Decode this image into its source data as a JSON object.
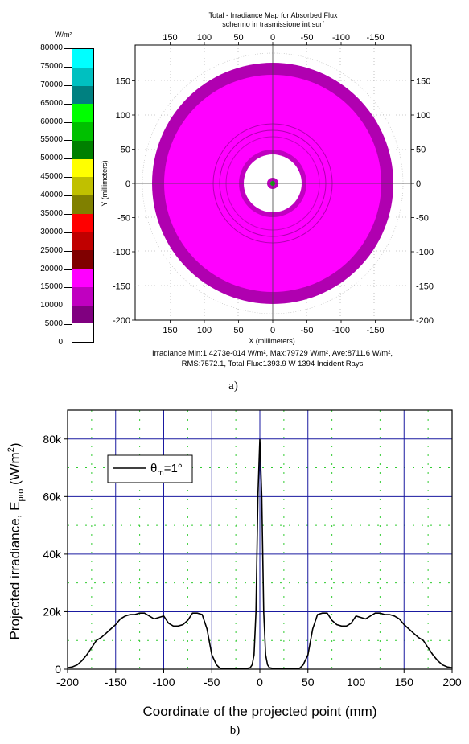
{
  "figure_a": {
    "caption": "a)",
    "title_line1": "Total - Irradiance Map for Absorbed Flux",
    "title_line2": "schermo in trasmissione int surf",
    "colorbar_unit": "W/m²",
    "colorbar_labels": [
      "80000",
      "75000",
      "70000",
      "65000",
      "60000",
      "55000",
      "50000",
      "45000",
      "40000",
      "35000",
      "30000",
      "25000",
      "20000",
      "15000",
      "10000",
      "5000",
      "0"
    ],
    "colorbar_colors": [
      "#00ffff",
      "#00c0c0",
      "#008080",
      "#00ff00",
      "#00c000",
      "#008000",
      "#ffff00",
      "#c0c000",
      "#808000",
      "#ff0000",
      "#c00000",
      "#800000",
      "#ff00ff",
      "#c000c0",
      "#800080",
      "#ffffff"
    ],
    "ring_colors": {
      "outer": "#b000b0",
      "inner": "#ff00ff",
      "center": "#c000c0",
      "center_dot": "#00c000"
    },
    "x_top_ticks": [
      "150",
      "100",
      "50",
      "0",
      "-50",
      "-100",
      "-150"
    ],
    "x_bottom_ticks": [
      "150",
      "100",
      "50",
      "0",
      "-50",
      "-100",
      "-150"
    ],
    "y_ticks": [
      "150",
      "100",
      "50",
      "0",
      "-50",
      "-100",
      "-150",
      "-200"
    ],
    "y_right_ticks": [
      "150",
      "100",
      "50",
      "0",
      "-50",
      "-100",
      "-150",
      "-200"
    ],
    "xlabel": "X (millimeters)",
    "ylabel": "Y (millimeters)",
    "stats_line1": "Irradiance Min:1.4273e-014 W/m², Max:79729 W/m², Ave:8711.6 W/m²,",
    "stats_line2": "RMS:7572.1, Total Flux:1393.9 W 1394 Incident Rays"
  },
  "figure_b": {
    "caption": "b)",
    "legend_label": "θm=1°",
    "legend_theta": "θ",
    "legend_sub": "m",
    "legend_rest": "=1°",
    "xlabel": "Coordinate of the projected point (mm)",
    "ylabel_main": "Projected irradiance, E",
    "ylabel_sub": "pro",
    "ylabel_unit": " (W/m",
    "ylabel_sup": "2",
    "ylabel_close": ")",
    "x_ticks": [
      "-200",
      "-150",
      "-100",
      "-50",
      "0",
      "50",
      "100",
      "150",
      "200"
    ],
    "y_ticks": [
      "0",
      "20k",
      "40k",
      "60k",
      "80k"
    ],
    "line_color": "#000000",
    "grid_color": "#1a1aa0",
    "minor_grid_color": "#33cc33"
  },
  "chart_data": [
    {
      "type": "heatmap",
      "title": "Total - Irradiance Map for Absorbed Flux",
      "subtitle": "schermo in trasmissione int surf",
      "xlabel": "X (millimeters)",
      "ylabel": "Y (millimeters)",
      "xlim": [
        200,
        -200
      ],
      "ylim": [
        -200,
        200
      ],
      "colorbar": {
        "unit": "W/m²",
        "min": 0,
        "max": 80000,
        "step": 5000
      },
      "rings_mm": [
        {
          "r_outer": 180,
          "r_inner": 162,
          "level": "10000-15000"
        },
        {
          "r_outer": 162,
          "r_inner": 42,
          "level": "15000-20000"
        },
        {
          "r_outer": 42,
          "r_inner": 8,
          "level": "0-5000"
        },
        {
          "r_outer": 8,
          "r_inner": 0,
          "level": "center peak"
        }
      ],
      "stats": {
        "min": "1.4273e-014 W/m²",
        "max": "79729 W/m²",
        "ave": "8711.6 W/m²",
        "rms": "7572.1",
        "total_flux": "1393.9 W",
        "incident_rays": 1394
      }
    },
    {
      "type": "line",
      "xlabel": "Coordinate of the projected point (mm)",
      "ylabel": "Projected irradiance, E_pro (W/m²)",
      "xlim": [
        -200,
        200
      ],
      "ylim": [
        0,
        90000
      ],
      "grid": true,
      "legend": "top-left",
      "series": [
        {
          "name": "θm=1°",
          "x": [
            -200,
            -195,
            -190,
            -185,
            -180,
            -175,
            -170,
            -165,
            -160,
            -155,
            -150,
            -145,
            -140,
            -135,
            -130,
            -125,
            -120,
            -115,
            -110,
            -105,
            -100,
            -95,
            -90,
            -85,
            -80,
            -75,
            -70,
            -65,
            -60,
            -55,
            -50,
            -45,
            -42,
            -40,
            -35,
            -30,
            -25,
            -20,
            -15,
            -10,
            -8,
            -6,
            -4,
            -2,
            0,
            2,
            4,
            6,
            8,
            10,
            15,
            20,
            25,
            30,
            35,
            40,
            42,
            45,
            50,
            55,
            60,
            65,
            70,
            75,
            80,
            85,
            90,
            95,
            100,
            105,
            110,
            115,
            120,
            125,
            130,
            135,
            140,
            145,
            150,
            155,
            160,
            165,
            170,
            175,
            180,
            185,
            190,
            195,
            200
          ],
          "y": [
            500,
            800,
            1500,
            3000,
            5000,
            7500,
            10000,
            11000,
            12500,
            14000,
            15500,
            17500,
            18500,
            19000,
            19000,
            19500,
            19500,
            18500,
            17500,
            18000,
            18500,
            16000,
            15000,
            15000,
            15500,
            17000,
            19500,
            19500,
            19000,
            14000,
            5000,
            1500,
            500,
            200,
            100,
            100,
            100,
            100,
            200,
            500,
            1500,
            5000,
            20000,
            60000,
            80000,
            60000,
            20000,
            5000,
            1500,
            500,
            200,
            100,
            100,
            100,
            100,
            200,
            500,
            1500,
            5000,
            14000,
            19000,
            19500,
            19500,
            17000,
            15500,
            15000,
            15000,
            16000,
            18500,
            18000,
            17500,
            18500,
            19500,
            19500,
            19000,
            19000,
            18500,
            17500,
            15500,
            14000,
            12500,
            11000,
            10000,
            7500,
            5000,
            3000,
            1500,
            800,
            500
          ]
        }
      ]
    }
  ]
}
